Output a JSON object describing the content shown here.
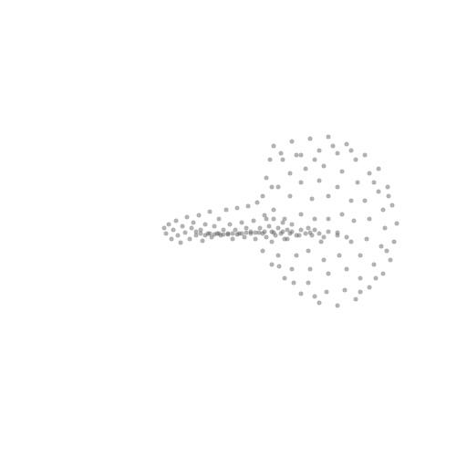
{
  "chart_data": {
    "type": "scatter",
    "color": "#555555",
    "marker": "circle",
    "tick_labels": false,
    "grid": false,
    "xlim": [
      0,
      512
    ],
    "ylim": [
      512,
      0
    ],
    "x": [
      180,
      182,
      185,
      188,
      190,
      193,
      195,
      198,
      200,
      203,
      205,
      208,
      210,
      212,
      215,
      218,
      220,
      222,
      225,
      228,
      230,
      232,
      235,
      238,
      240,
      242,
      245,
      248,
      250,
      252,
      255,
      258,
      260,
      262,
      265,
      268,
      270,
      272,
      275,
      278,
      280,
      282,
      285,
      288,
      290,
      292,
      295,
      298,
      300,
      302,
      305,
      308,
      310,
      312,
      315,
      318,
      320,
      325,
      330,
      335,
      338,
      340,
      342,
      345,
      350,
      355,
      360,
      370,
      380,
      230,
      235,
      240,
      245,
      250,
      255,
      260,
      265,
      220,
      215,
      225,
      270,
      275,
      280,
      290,
      300,
      310,
      320,
      300,
      320,
      340,
      360,
      380,
      400,
      415,
      425,
      430,
      435,
      432,
      428,
      420,
      405,
      390,
      370,
      350,
      330,
      312,
      298,
      288,
      284,
      288,
      292,
      296,
      310,
      330,
      350,
      370,
      390,
      405,
      415,
      420,
      422,
      418,
      410,
      395,
      378,
      358,
      338,
      320,
      305,
      298,
      300,
      305,
      318,
      335,
      355,
      375,
      392,
      400,
      405,
      402,
      395,
      380,
      360,
      340,
      325,
      315,
      312,
      318,
      330,
      350,
      370,
      385,
      388,
      385,
      372,
      355,
      338,
      328,
      330,
      342,
      360,
      375,
      370,
      352,
      345,
      360,
      325,
      345,
      365,
      385,
      410,
      426,
      424,
      412,
      395,
      345,
      322,
      306,
      292,
      298,
      308
    ],
    "y": [
      250,
      256,
      246,
      262,
      252,
      242,
      258,
      266,
      248,
      255,
      238,
      262,
      250,
      244,
      258,
      236,
      252,
      264,
      246,
      256,
      232,
      260,
      248,
      256,
      240,
      258,
      252,
      230,
      257,
      246,
      262,
      252,
      228,
      256,
      244,
      260,
      250,
      226,
      256,
      242,
      262,
      222,
      250,
      256,
      236,
      260,
      248,
      254,
      240,
      258,
      250,
      256,
      244,
      262,
      252,
      256,
      246,
      258,
      252,
      256,
      250,
      255,
      258,
      252,
      256,
      260,
      254,
      258,
      260,
      256,
      257,
      256,
      257,
      256,
      256,
      257,
      256,
      256,
      254,
      258,
      255,
      254,
      255,
      254,
      255,
      254,
      254,
      160,
      155,
      152,
      150,
      158,
      170,
      185,
      205,
      225,
      245,
      265,
      285,
      300,
      315,
      328,
      335,
      332,
      322,
      305,
      290,
      275,
      255,
      215,
      195,
      175,
      175,
      170,
      165,
      168,
      175,
      190,
      210,
      230,
      250,
      270,
      290,
      305,
      318,
      320,
      310,
      295,
      280,
      265,
      230,
      205,
      190,
      185,
      182,
      188,
      200,
      220,
      240,
      262,
      280,
      295,
      300,
      295,
      280,
      262,
      240,
      215,
      200,
      198,
      205,
      220,
      242,
      265,
      280,
      285,
      275,
      258,
      235,
      218,
      215,
      235,
      255,
      265,
      240,
      240,
      170,
      175,
      160,
      165,
      200,
      215,
      275,
      305,
      320,
      325,
      310,
      292,
      240,
      205,
      168
    ]
  }
}
